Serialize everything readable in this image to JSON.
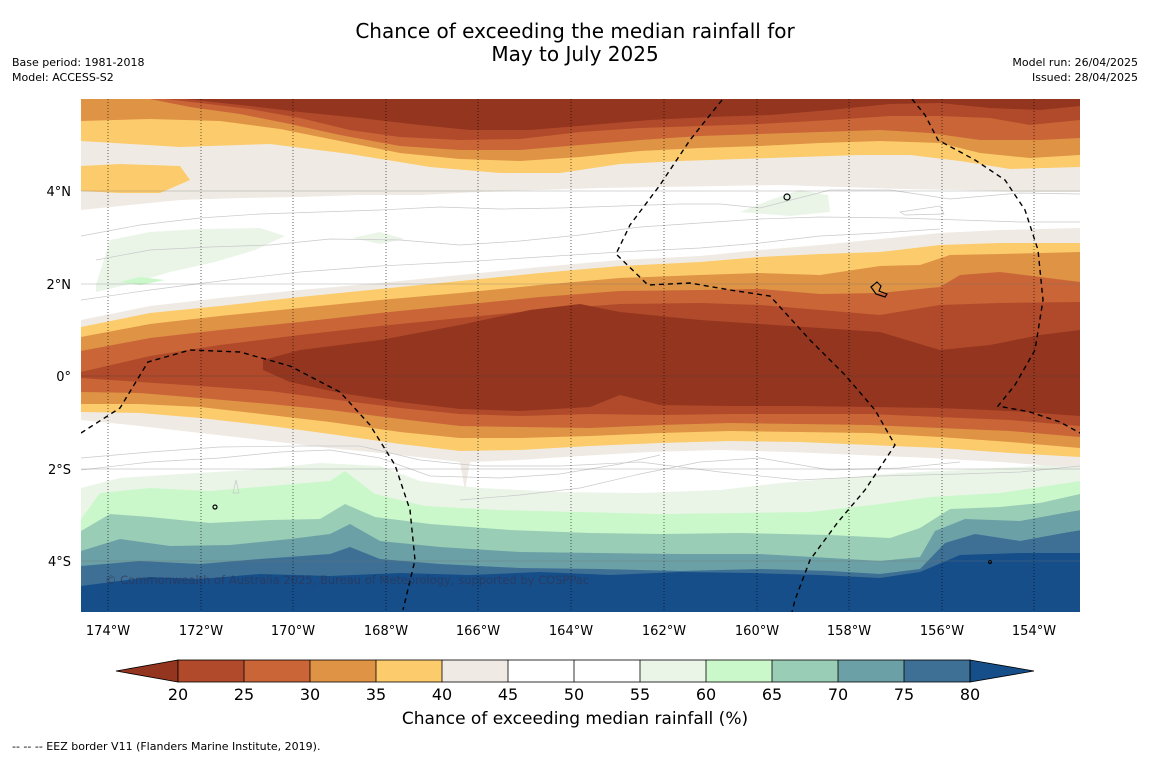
{
  "title": {
    "line1": "Chance of exceeding the median rainfall for",
    "line2": "May to July 2025"
  },
  "meta_left": {
    "base_period": "Base period: 1981-2018",
    "model": "Model: ACCESS-S2"
  },
  "meta_right": {
    "model_run": "Model run: 26/04/2025",
    "issued": "Issued: 28/04/2025"
  },
  "map": {
    "credit": "© Commonwealth of Australia 2025, Bureau of Meteorology, supported by COSPPac",
    "lat_labels": [
      "4°N",
      "2°N",
      "0°",
      "2°S",
      "4°S"
    ],
    "lon_labels": [
      "174°W",
      "172°W",
      "170°W",
      "168°W",
      "166°W",
      "164°W",
      "162°W",
      "160°W",
      "158°W",
      "156°W",
      "154°W"
    ]
  },
  "colorbar": {
    "ticks": [
      "20",
      "25",
      "30",
      "35",
      "40",
      "45",
      "50",
      "55",
      "60",
      "65",
      "70",
      "75",
      "80"
    ],
    "colors": {
      "under": "#94351f",
      "c20": "#b04a2a",
      "c25": "#c96537",
      "c30": "#df9345",
      "c35": "#fccb6b",
      "c40": "#efebe4",
      "c45": "#ffffff",
      "c50": "#ffffff",
      "c55": "#eaf5e8",
      "c60": "#cbf8cb",
      "c65": "#9acdb6",
      "c70": "#6ba0a6",
      "c75": "#3e7096",
      "over": "#154e88"
    },
    "label": "Chance of exceeding median rainfall (%)"
  },
  "footnote": "--  --  -- EEZ border V11 (Flanders Marine Institute, 2019)."
}
